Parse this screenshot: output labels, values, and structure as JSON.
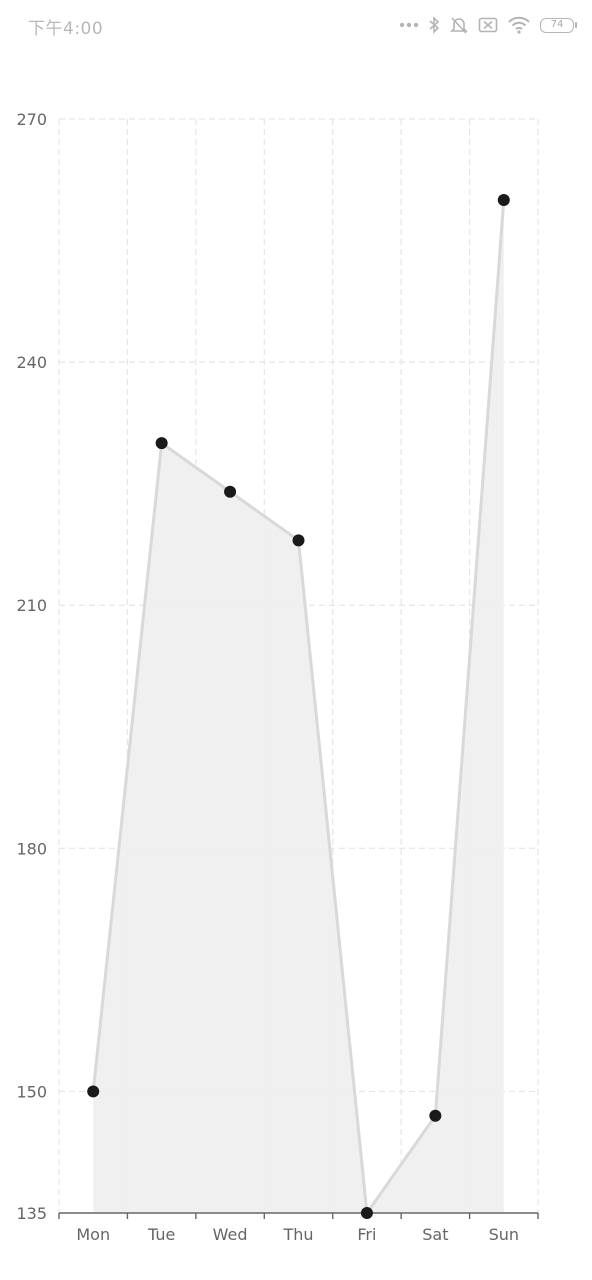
{
  "status_bar": {
    "time": "下午4:00",
    "battery": "74",
    "icons": [
      "dots-icon",
      "bluetooth-icon",
      "mute-icon",
      "sim-off-icon",
      "wifi-icon",
      "battery-icon"
    ]
  },
  "chart_data": {
    "type": "area",
    "categories": [
      "Mon",
      "Tue",
      "Wed",
      "Thu",
      "Fri",
      "Sat",
      "Sun"
    ],
    "series": [
      {
        "values": [
          150,
          230,
          224,
          218,
          135,
          147,
          260
        ]
      }
    ],
    "ylim": [
      135,
      270
    ],
    "yticks": [
      135,
      150,
      180,
      210,
      240,
      270
    ],
    "grid": true,
    "colors": {
      "line": "#d9d9d9",
      "area": "#efefef",
      "point": "#1a1a1a",
      "grid": "#e6e6e6",
      "axis": "#666666"
    }
  }
}
